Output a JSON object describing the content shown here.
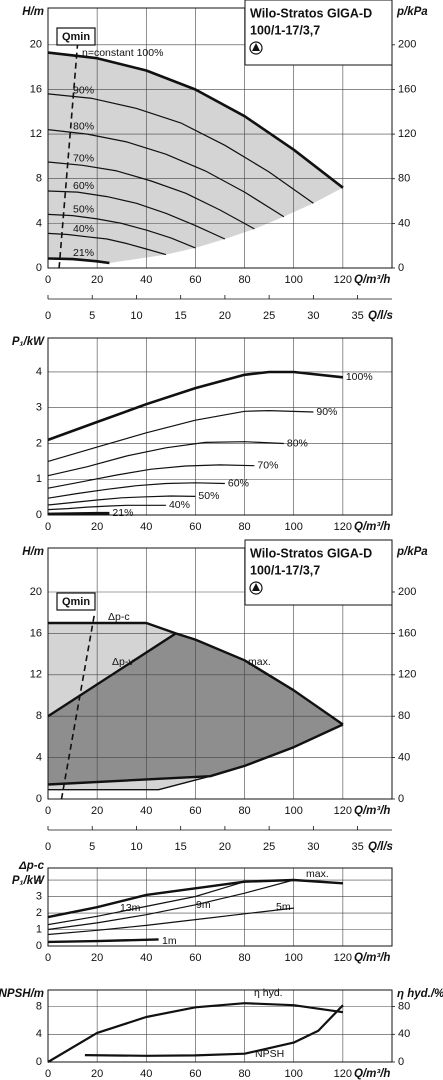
{
  "chart_data": [
    {
      "type": "line",
      "title": [
        "Wilo-Stratos GIGA-D",
        "100/1-17/3,7"
      ],
      "annotation": "n=constant 100%",
      "y_label": "H/m",
      "y2_label": "p/kPa",
      "x_label": "Q/m³/h",
      "x2_label": "Q/l/s",
      "xlim": [
        0,
        140
      ],
      "xticks": [
        0,
        20,
        40,
        60,
        80,
        100,
        120
      ],
      "x2lim": [
        0,
        38.89
      ],
      "x2ticks": [
        0,
        5,
        10,
        15,
        20,
        25,
        30,
        35
      ],
      "ylim": [
        0,
        23.3
      ],
      "yticks": [
        0,
        4,
        8,
        12,
        16,
        20
      ],
      "y2lim": [
        0,
        233
      ],
      "y2ticks": [
        0,
        40,
        80,
        120,
        160,
        200
      ],
      "grid": true,
      "series": [
        {
          "color": "#111111",
          "line_width": 2.6,
          "x": [
            0,
            20,
            40,
            60,
            80,
            100,
            120
          ],
          "values": [
            19.3,
            18.8,
            17.7,
            16.0,
            13.6,
            10.6,
            7.2
          ]
        },
        {
          "name": "90%",
          "color": "#111111",
          "line_width": 1.2,
          "x": [
            0,
            18,
            36,
            54,
            72,
            90,
            108
          ],
          "values": [
            15.6,
            15.2,
            14.3,
            13.0,
            11.0,
            8.6,
            5.8
          ]
        },
        {
          "name": "80%",
          "color": "#111111",
          "line_width": 1.2,
          "x": [
            0,
            16,
            32,
            48,
            64,
            80,
            96
          ],
          "values": [
            12.4,
            12.0,
            11.3,
            10.2,
            8.7,
            6.8,
            4.6
          ]
        },
        {
          "name": "70%",
          "color": "#111111",
          "line_width": 1.2,
          "x": [
            0,
            14,
            28,
            42,
            56,
            70,
            84
          ],
          "values": [
            9.5,
            9.2,
            8.7,
            7.8,
            6.7,
            5.2,
            3.5
          ]
        },
        {
          "name": "60%",
          "color": "#111111",
          "line_width": 1.2,
          "x": [
            0,
            12,
            24,
            36,
            48,
            60,
            72
          ],
          "values": [
            6.9,
            6.8,
            6.4,
            5.8,
            4.9,
            3.8,
            2.6
          ]
        },
        {
          "name": "50%",
          "color": "#111111",
          "line_width": 1.2,
          "x": [
            0,
            10,
            20,
            30,
            40,
            50,
            60
          ],
          "values": [
            4.8,
            4.7,
            4.4,
            4.0,
            3.4,
            2.7,
            1.8
          ]
        },
        {
          "name": "40%",
          "color": "#111111",
          "line_width": 1.2,
          "x": [
            0,
            8,
            16,
            24,
            32,
            40,
            48
          ],
          "values": [
            3.1,
            3.0,
            2.8,
            2.6,
            2.2,
            1.7,
            1.2
          ]
        },
        {
          "name": "21%",
          "color": "#111111",
          "line_width": 2.6,
          "x": [
            0,
            10,
            20,
            25
          ],
          "values": [
            0.85,
            0.8,
            0.6,
            0.45
          ]
        },
        {
          "name": "Qmin",
          "color": "#111111",
          "line_width": 1.6,
          "dashed": true,
          "x": [
            4.5,
            12
          ],
          "values": [
            0,
            20
          ]
        }
      ]
    },
    {
      "type": "line",
      "y_label": "P₁/kW",
      "x_label": "Q/m³/h",
      "xlim": [
        0,
        140
      ],
      "xticks": [
        0,
        20,
        40,
        60,
        80,
        100,
        120
      ],
      "ylim": [
        0,
        4.95
      ],
      "yticks": [
        0,
        1,
        2,
        3,
        4
      ],
      "grid": true,
      "series": [
        {
          "name": "100%",
          "color": "#111111",
          "line_width": 2.6,
          "x": [
            0,
            20,
            40,
            60,
            80,
            90,
            100,
            120
          ],
          "values": [
            2.1,
            2.6,
            3.1,
            3.55,
            3.92,
            4.0,
            4.0,
            3.85
          ]
        },
        {
          "name": "90%",
          "color": "#111111",
          "line_width": 1.2,
          "x": [
            0,
            20,
            40,
            60,
            80,
            90,
            108
          ],
          "values": [
            1.5,
            1.9,
            2.3,
            2.65,
            2.9,
            2.92,
            2.88
          ]
        },
        {
          "name": "80%",
          "color": "#111111",
          "line_width": 1.2,
          "x": [
            0,
            16,
            32,
            48,
            64,
            80,
            96
          ],
          "values": [
            1.1,
            1.35,
            1.65,
            1.88,
            2.03,
            2.05,
            2.0
          ]
        },
        {
          "name": "70%",
          "color": "#111111",
          "line_width": 1.2,
          "x": [
            0,
            14,
            28,
            42,
            56,
            70,
            84
          ],
          "values": [
            0.75,
            0.93,
            1.12,
            1.28,
            1.37,
            1.4,
            1.38
          ]
        },
        {
          "name": "60%",
          "color": "#111111",
          "line_width": 1.2,
          "x": [
            0,
            12,
            24,
            36,
            48,
            60,
            72
          ],
          "values": [
            0.47,
            0.6,
            0.72,
            0.82,
            0.88,
            0.9,
            0.88
          ]
        },
        {
          "name": "50%",
          "color": "#111111",
          "line_width": 1.2,
          "x": [
            0,
            10,
            20,
            30,
            40,
            50,
            60
          ],
          "values": [
            0.28,
            0.35,
            0.42,
            0.48,
            0.51,
            0.53,
            0.52
          ]
        },
        {
          "name": "40%",
          "color": "#111111",
          "line_width": 1.2,
          "x": [
            0,
            8,
            16,
            24,
            32,
            40,
            48
          ],
          "values": [
            0.15,
            0.18,
            0.22,
            0.25,
            0.27,
            0.27,
            0.27
          ]
        },
        {
          "name": "21%",
          "color": "#111111",
          "line_width": 2.6,
          "x": [
            0,
            10,
            20,
            25
          ],
          "values": [
            0.03,
            0.04,
            0.05,
            0.05
          ]
        }
      ]
    },
    {
      "type": "line",
      "title": [
        "Wilo-Stratos GIGA-D",
        "100/1-17/3,7"
      ],
      "y_label": "H/m",
      "y2_label": "p/kPa",
      "x_label": "Q/m³/h",
      "x2_label": "Q/l/s",
      "xlim": [
        0,
        140
      ],
      "xticks": [
        0,
        20,
        40,
        60,
        80,
        100,
        120
      ],
      "x2lim": [
        0,
        38.89
      ],
      "x2ticks": [
        0,
        5,
        10,
        15,
        20,
        25,
        30,
        35
      ],
      "ylim": [
        0,
        24.25
      ],
      "yticks": [
        0,
        4,
        8,
        12,
        16,
        20
      ],
      "y2lim": [
        0,
        242.5
      ],
      "y2ticks": [
        0,
        40,
        80,
        120,
        160,
        200
      ],
      "grid": true,
      "series": [
        {
          "name": "Δp-c",
          "color": "#111111",
          "line_width": 2.4,
          "x": [
            0,
            40,
            52
          ],
          "values": [
            17,
            17,
            16
          ]
        },
        {
          "name": "Δp-v",
          "color": "#111111",
          "line_width": 2.4,
          "x": [
            0,
            52
          ],
          "values": [
            8,
            16
          ]
        },
        {
          "name": "max.",
          "color": "#111111",
          "line_width": 2.4,
          "x": [
            52,
            60,
            80,
            100,
            120
          ],
          "values": [
            16,
            15.4,
            13.4,
            10.5,
            7.2
          ]
        },
        {
          "color": "#111111",
          "line_width": 2.4,
          "x": [
            0,
            66,
            80,
            100,
            120
          ],
          "values": [
            1.4,
            2.2,
            3.2,
            5.0,
            7.2
          ]
        },
        {
          "color": "#111111",
          "line_width": 1.4,
          "x": [
            0,
            45,
            66
          ],
          "values": [
            0.9,
            0.9,
            2.2
          ]
        },
        {
          "name": "Qmin",
          "color": "#111111",
          "line_width": 1.6,
          "dashed": true,
          "x": [
            5.5,
            19
          ],
          "values": [
            0,
            18
          ]
        }
      ]
    },
    {
      "type": "line",
      "mode": "Δp-c",
      "y_label": "P₁/kW",
      "x_label": "Q/m³/h",
      "xlim": [
        0,
        140
      ],
      "xticks": [
        0,
        20,
        40,
        60,
        80,
        100,
        120
      ],
      "ylim": [
        0,
        4.73
      ],
      "yticks": [
        0,
        1,
        2,
        3,
        4
      ],
      "grid": true,
      "series": [
        {
          "name": "max.",
          "color": "#111111",
          "line_width": 2.4,
          "x": [
            0,
            20,
            40,
            60,
            80,
            100,
            120
          ],
          "values": [
            1.75,
            2.35,
            3.1,
            3.5,
            3.9,
            4.0,
            3.8
          ]
        },
        {
          "name": "13m",
          "color": "#111111",
          "line_width": 1.2,
          "x": [
            0,
            20,
            40,
            60,
            80
          ],
          "values": [
            1.3,
            1.8,
            2.4,
            3.0,
            3.9
          ]
        },
        {
          "name": "9m",
          "color": "#111111",
          "line_width": 1.2,
          "x": [
            0,
            20,
            40,
            60,
            80,
            100
          ],
          "values": [
            1.0,
            1.4,
            1.9,
            2.5,
            3.2,
            4.0
          ]
        },
        {
          "name": "5m",
          "color": "#111111",
          "line_width": 1.2,
          "x": [
            0,
            20,
            40,
            60,
            80,
            100
          ],
          "values": [
            0.7,
            0.95,
            1.25,
            1.6,
            1.95,
            2.3
          ]
        },
        {
          "name": "1m",
          "color": "#111111",
          "line_width": 2.4,
          "x": [
            0,
            20,
            45
          ],
          "values": [
            0.25,
            0.3,
            0.4
          ]
        }
      ]
    },
    {
      "type": "line",
      "y_label": "NPSH/m",
      "y2_label": "η hyd./%",
      "x_label": "Q/m³/h",
      "xlim": [
        0,
        140
      ],
      "xticks": [
        0,
        20,
        40,
        60,
        80,
        100,
        120
      ],
      "ylim": [
        0,
        10.4
      ],
      "yticks": [
        0,
        4,
        8
      ],
      "y2lim": [
        0,
        104
      ],
      "y2ticks": [
        0,
        40,
        80
      ],
      "grid": true,
      "series": [
        {
          "name": "NPSH",
          "color": "#111111",
          "line_width": 2.2,
          "x": [
            15,
            40,
            60,
            80,
            100,
            110,
            120
          ],
          "values": [
            1.0,
            0.9,
            0.95,
            1.2,
            2.8,
            4.5,
            8.2
          ]
        },
        {
          "name": "η hyd.",
          "axis": "y2",
          "color": "#111111",
          "line_width": 2.2,
          "x": [
            0,
            20,
            40,
            60,
            80,
            100,
            120
          ],
          "values": [
            0,
            42,
            65,
            79,
            85,
            82,
            72
          ]
        }
      ]
    }
  ]
}
